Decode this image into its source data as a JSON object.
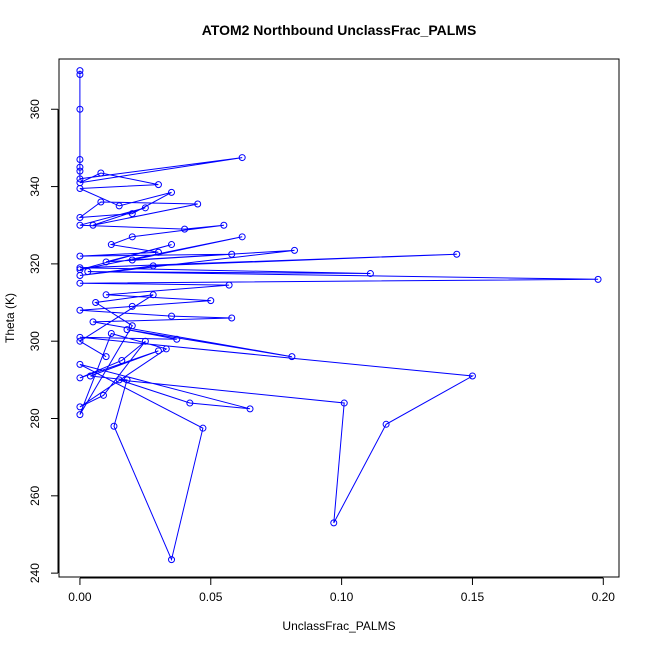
{
  "chart_data": {
    "type": "line",
    "title": "ATOM2 Northbound UnclassFrac_PALMS",
    "xlabel": "UnclassFrac_PALMS",
    "ylabel": "Theta (K)",
    "xlim": [
      -0.008,
      0.206
    ],
    "ylim": [
      239,
      373
    ],
    "x_ticks": [
      0.0,
      0.05,
      0.1,
      0.15,
      0.2
    ],
    "x_tick_labels": [
      "0.00",
      "0.05",
      "0.10",
      "0.15",
      "0.20"
    ],
    "y_ticks": [
      240,
      260,
      280,
      300,
      320,
      340,
      360
    ],
    "y_tick_labels": [
      "240",
      "260",
      "280",
      "300",
      "320",
      "340",
      "360"
    ],
    "grid": false,
    "series": [
      {
        "color": "#0000ff",
        "marker": "open-circle",
        "line": true,
        "x": [
          0.0,
          0.0,
          0.0,
          0.0,
          0.0,
          0.0,
          0.0,
          0.062,
          0.0,
          0.008,
          0.03,
          0.0,
          0.015,
          0.035,
          0.02,
          0.0,
          0.008,
          0.045,
          0.005,
          0.025,
          0.0,
          0.04,
          0.055,
          0.02,
          0.012,
          0.03,
          0.0,
          0.058,
          0.01,
          0.035,
          0.0,
          0.062,
          0.02,
          0.082,
          0.0,
          0.028,
          0.144,
          0.0,
          0.111,
          0.003,
          0.198,
          0.0,
          0.057,
          0.01,
          0.05,
          0.02,
          0.0,
          0.035,
          0.058,
          0.005,
          0.081,
          0.018,
          0.037,
          0.0,
          0.15,
          0.117,
          0.097,
          0.101,
          0.015,
          0.042,
          0.065,
          0.0,
          0.047,
          0.035,
          0.013,
          0.018,
          0.004,
          0.03,
          0.0,
          0.016,
          0.025,
          0.009,
          0.0,
          0.033,
          0.012,
          0.0,
          0.02,
          0.006,
          0.028,
          0.0,
          0.01
        ],
        "y": [
          370.0,
          369.0,
          360.0,
          347.0,
          345.0,
          344.0,
          342.0,
          347.5,
          341.0,
          343.5,
          340.5,
          339.5,
          335.0,
          338.5,
          333.0,
          332.0,
          336.0,
          335.5,
          330.0,
          334.5,
          330.0,
          329.0,
          330.0,
          327.0,
          325.0,
          323.0,
          322.0,
          322.5,
          320.5,
          325.0,
          318.5,
          327.0,
          321.0,
          323.5,
          317.0,
          319.5,
          322.5,
          319.0,
          317.5,
          318.0,
          316.0,
          315.0,
          314.5,
          312.0,
          310.5,
          309.0,
          308.0,
          306.5,
          306.0,
          305.0,
          296.0,
          303.0,
          300.5,
          301.0,
          291.0,
          278.5,
          253.0,
          284.0,
          290.0,
          284.0,
          282.5,
          294.0,
          277.5,
          243.5,
          278.0,
          290.0,
          291.0,
          297.5,
          290.5,
          295.0,
          300.0,
          286.0,
          283.0,
          298.0,
          302.0,
          281.0,
          304.0,
          310.0,
          312.0,
          300.0,
          296.0
        ]
      }
    ]
  }
}
